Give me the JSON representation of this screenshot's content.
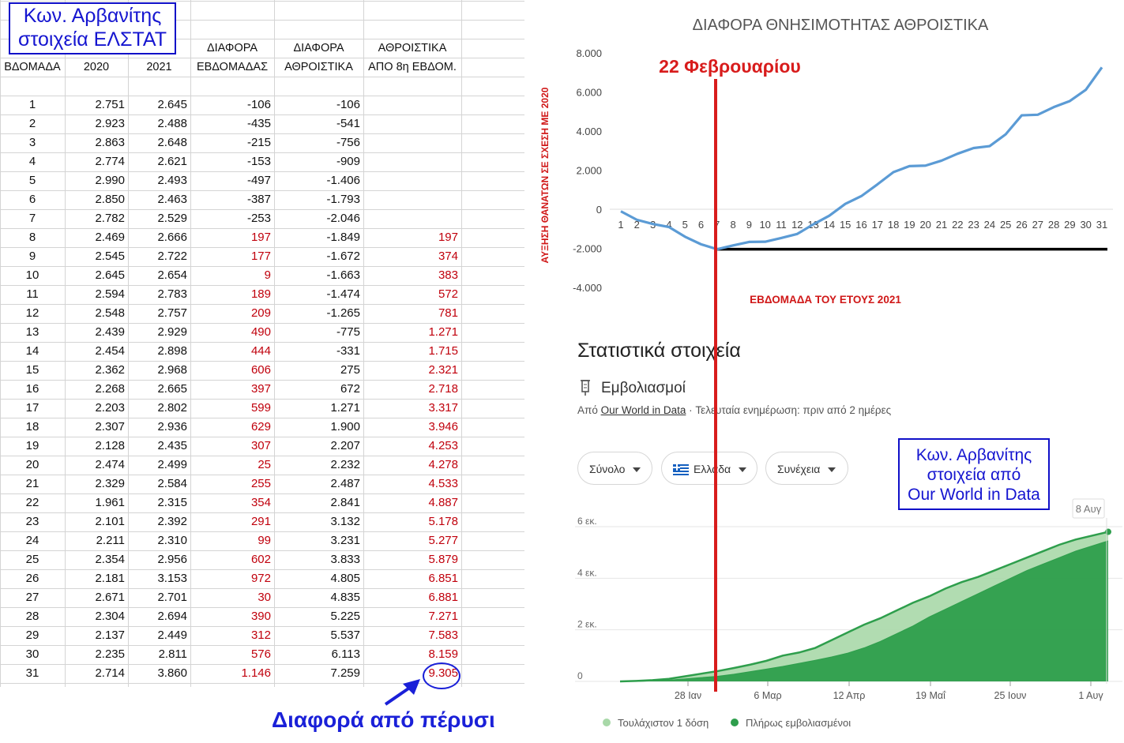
{
  "left_table": {
    "header_box": [
      "Κων. Αρβανίτης",
      "στοιχεία ΕΛΣΤΑΤ"
    ],
    "headers_row1": [
      "",
      "",
      "",
      "ΔΙΑΦΟΡΑ",
      "ΔΙΑΦΟΡΑ",
      "ΑΘΡΟΙΣΤΙΚΑ"
    ],
    "headers_row2": [
      "ΒΔΟΜΑΔΑ",
      "2020",
      "2021",
      "ΕΒΔΟΜΑΔΑΣ",
      "ΑΘΡΟΙΣΤΙΚΑ",
      "ΑΠΟ 8η ΕΒΔΟΜ."
    ],
    "rows": [
      [
        "1",
        "2.751",
        "2.645",
        "-106",
        "-106",
        ""
      ],
      [
        "2",
        "2.923",
        "2.488",
        "-435",
        "-541",
        ""
      ],
      [
        "3",
        "2.863",
        "2.648",
        "-215",
        "-756",
        ""
      ],
      [
        "4",
        "2.774",
        "2.621",
        "-153",
        "-909",
        ""
      ],
      [
        "5",
        "2.990",
        "2.493",
        "-497",
        "-1.406",
        ""
      ],
      [
        "6",
        "2.850",
        "2.463",
        "-387",
        "-1.793",
        ""
      ],
      [
        "7",
        "2.782",
        "2.529",
        "-253",
        "-2.046",
        ""
      ],
      [
        "8",
        "2.469",
        "2.666",
        "197",
        "-1.849",
        "197"
      ],
      [
        "9",
        "2.545",
        "2.722",
        "177",
        "-1.672",
        "374"
      ],
      [
        "10",
        "2.645",
        "2.654",
        "9",
        "-1.663",
        "383"
      ],
      [
        "11",
        "2.594",
        "2.783",
        "189",
        "-1.474",
        "572"
      ],
      [
        "12",
        "2.548",
        "2.757",
        "209",
        "-1.265",
        "781"
      ],
      [
        "13",
        "2.439",
        "2.929",
        "490",
        "-775",
        "1.271"
      ],
      [
        "14",
        "2.454",
        "2.898",
        "444",
        "-331",
        "1.715"
      ],
      [
        "15",
        "2.362",
        "2.968",
        "606",
        "275",
        "2.321"
      ],
      [
        "16",
        "2.268",
        "2.665",
        "397",
        "672",
        "2.718"
      ],
      [
        "17",
        "2.203",
        "2.802",
        "599",
        "1.271",
        "3.317"
      ],
      [
        "18",
        "2.307",
        "2.936",
        "629",
        "1.900",
        "3.946"
      ],
      [
        "19",
        "2.128",
        "2.435",
        "307",
        "2.207",
        "4.253"
      ],
      [
        "20",
        "2.474",
        "2.499",
        "25",
        "2.232",
        "4.278"
      ],
      [
        "21",
        "2.329",
        "2.584",
        "255",
        "2.487",
        "4.533"
      ],
      [
        "22",
        "1.961",
        "2.315",
        "354",
        "2.841",
        "4.887"
      ],
      [
        "23",
        "2.101",
        "2.392",
        "291",
        "3.132",
        "5.178"
      ],
      [
        "24",
        "2.211",
        "2.310",
        "99",
        "3.231",
        "5.277"
      ],
      [
        "25",
        "2.354",
        "2.956",
        "602",
        "3.833",
        "5.879"
      ],
      [
        "26",
        "2.181",
        "3.153",
        "972",
        "4.805",
        "6.851"
      ],
      [
        "27",
        "2.671",
        "2.701",
        "30",
        "4.835",
        "6.881"
      ],
      [
        "28",
        "2.304",
        "2.694",
        "390",
        "5.225",
        "7.271"
      ],
      [
        "29",
        "2.137",
        "2.449",
        "312",
        "5.537",
        "7.583"
      ],
      [
        "30",
        "2.235",
        "2.811",
        "576",
        "6.113",
        "8.159"
      ],
      [
        "31",
        "2.714",
        "3.860",
        "1.146",
        "7.259",
        "9.305"
      ]
    ],
    "note": "Διαφορά από πέρυσι",
    "colors": {
      "red": "#c0000c",
      "blue": "#1a20d8"
    }
  },
  "chart_data": [
    {
      "type": "line",
      "title": "ΔΙΑΦΟΡΑ ΘΝΗΣΙΜΟΤΗΤΑΣ ΑΘΡΟΙΣΤΙΚΑ",
      "xlabel": "ΕΒΔΟΜΑΔΑ ΤΟΥ ΕΤΟΥΣ 2021",
      "ylabel": "ΑΥΞΗΣΗ ΘΑΝΑΤΩΝ ΣΕ ΣΧΕΣΗ ΜΕ 2020",
      "x": [
        1,
        2,
        3,
        4,
        5,
        6,
        7,
        8,
        9,
        10,
        11,
        12,
        13,
        14,
        15,
        16,
        17,
        18,
        19,
        20,
        21,
        22,
        23,
        24,
        25,
        26,
        27,
        28,
        29,
        30,
        31
      ],
      "y": [
        -106,
        -541,
        -756,
        -909,
        -1406,
        -1793,
        -2046,
        -1849,
        -1672,
        -1663,
        -1474,
        -1265,
        -775,
        -331,
        275,
        672,
        1271,
        1900,
        2207,
        2232,
        2487,
        2841,
        3132,
        3231,
        3833,
        4805,
        4835,
        5225,
        5537,
        6113,
        7259
      ],
      "ylim": [
        -4000,
        8000
      ],
      "yticks": [
        "8.000",
        "6.000",
        "4.000",
        "2.000",
        "0",
        "-2.000",
        "-4.000"
      ],
      "baseline": -2046,
      "annotation": "22 Φεβρουαρίου",
      "color": "#5b9bd5"
    },
    {
      "type": "area",
      "title": "Στατιστικά στοιχεία",
      "subtitle": "Εμβολιασμοί",
      "source_prefix": "Από",
      "source_link": "Our World in Data",
      "updated": "Τελευταία ενημέρωση: πριν από 2 ημέρες",
      "yticks": [
        "6 εκ.",
        "4 εκ.",
        "2 εκ.",
        "0"
      ],
      "xticks": [
        "28 Ιαν",
        "6 Μαρ",
        "12 Απρ",
        "19 Μαΐ",
        "25 Ιουν",
        "1 Αυγ"
      ],
      "tooltip": "8 Αυγ",
      "ylim": [
        0,
        6
      ],
      "series": [
        {
          "name": "Τουλάχιστον 1 δόση",
          "color": "#a8d8a8",
          "values": [
            0,
            0.02,
            0.05,
            0.1,
            0.2,
            0.3,
            0.4,
            0.52,
            0.65,
            0.8,
            1.0,
            1.12,
            1.3,
            1.6,
            1.9,
            2.2,
            2.45,
            2.75,
            3.05,
            3.3,
            3.6,
            3.85,
            4.05,
            4.3,
            4.55,
            4.8,
            5.05,
            5.3,
            5.5,
            5.65,
            5.8
          ]
        },
        {
          "name": "Πλήρως εμβολιασμένοι",
          "color": "#2e9e4c",
          "values": [
            0,
            0,
            0.02,
            0.05,
            0.1,
            0.15,
            0.2,
            0.28,
            0.38,
            0.48,
            0.58,
            0.7,
            0.82,
            0.95,
            1.1,
            1.3,
            1.55,
            1.85,
            2.15,
            2.5,
            2.8,
            3.1,
            3.4,
            3.7,
            4.0,
            4.3,
            4.55,
            4.8,
            5.05,
            5.25,
            5.45
          ]
        }
      ],
      "pills": [
        "Σύνολο",
        "Ελλάδα",
        "Συνέχεια"
      ]
    }
  ],
  "owid_box": [
    "Κων. Αρβανίτης",
    "στοιχεία από",
    "Our World in Data"
  ]
}
